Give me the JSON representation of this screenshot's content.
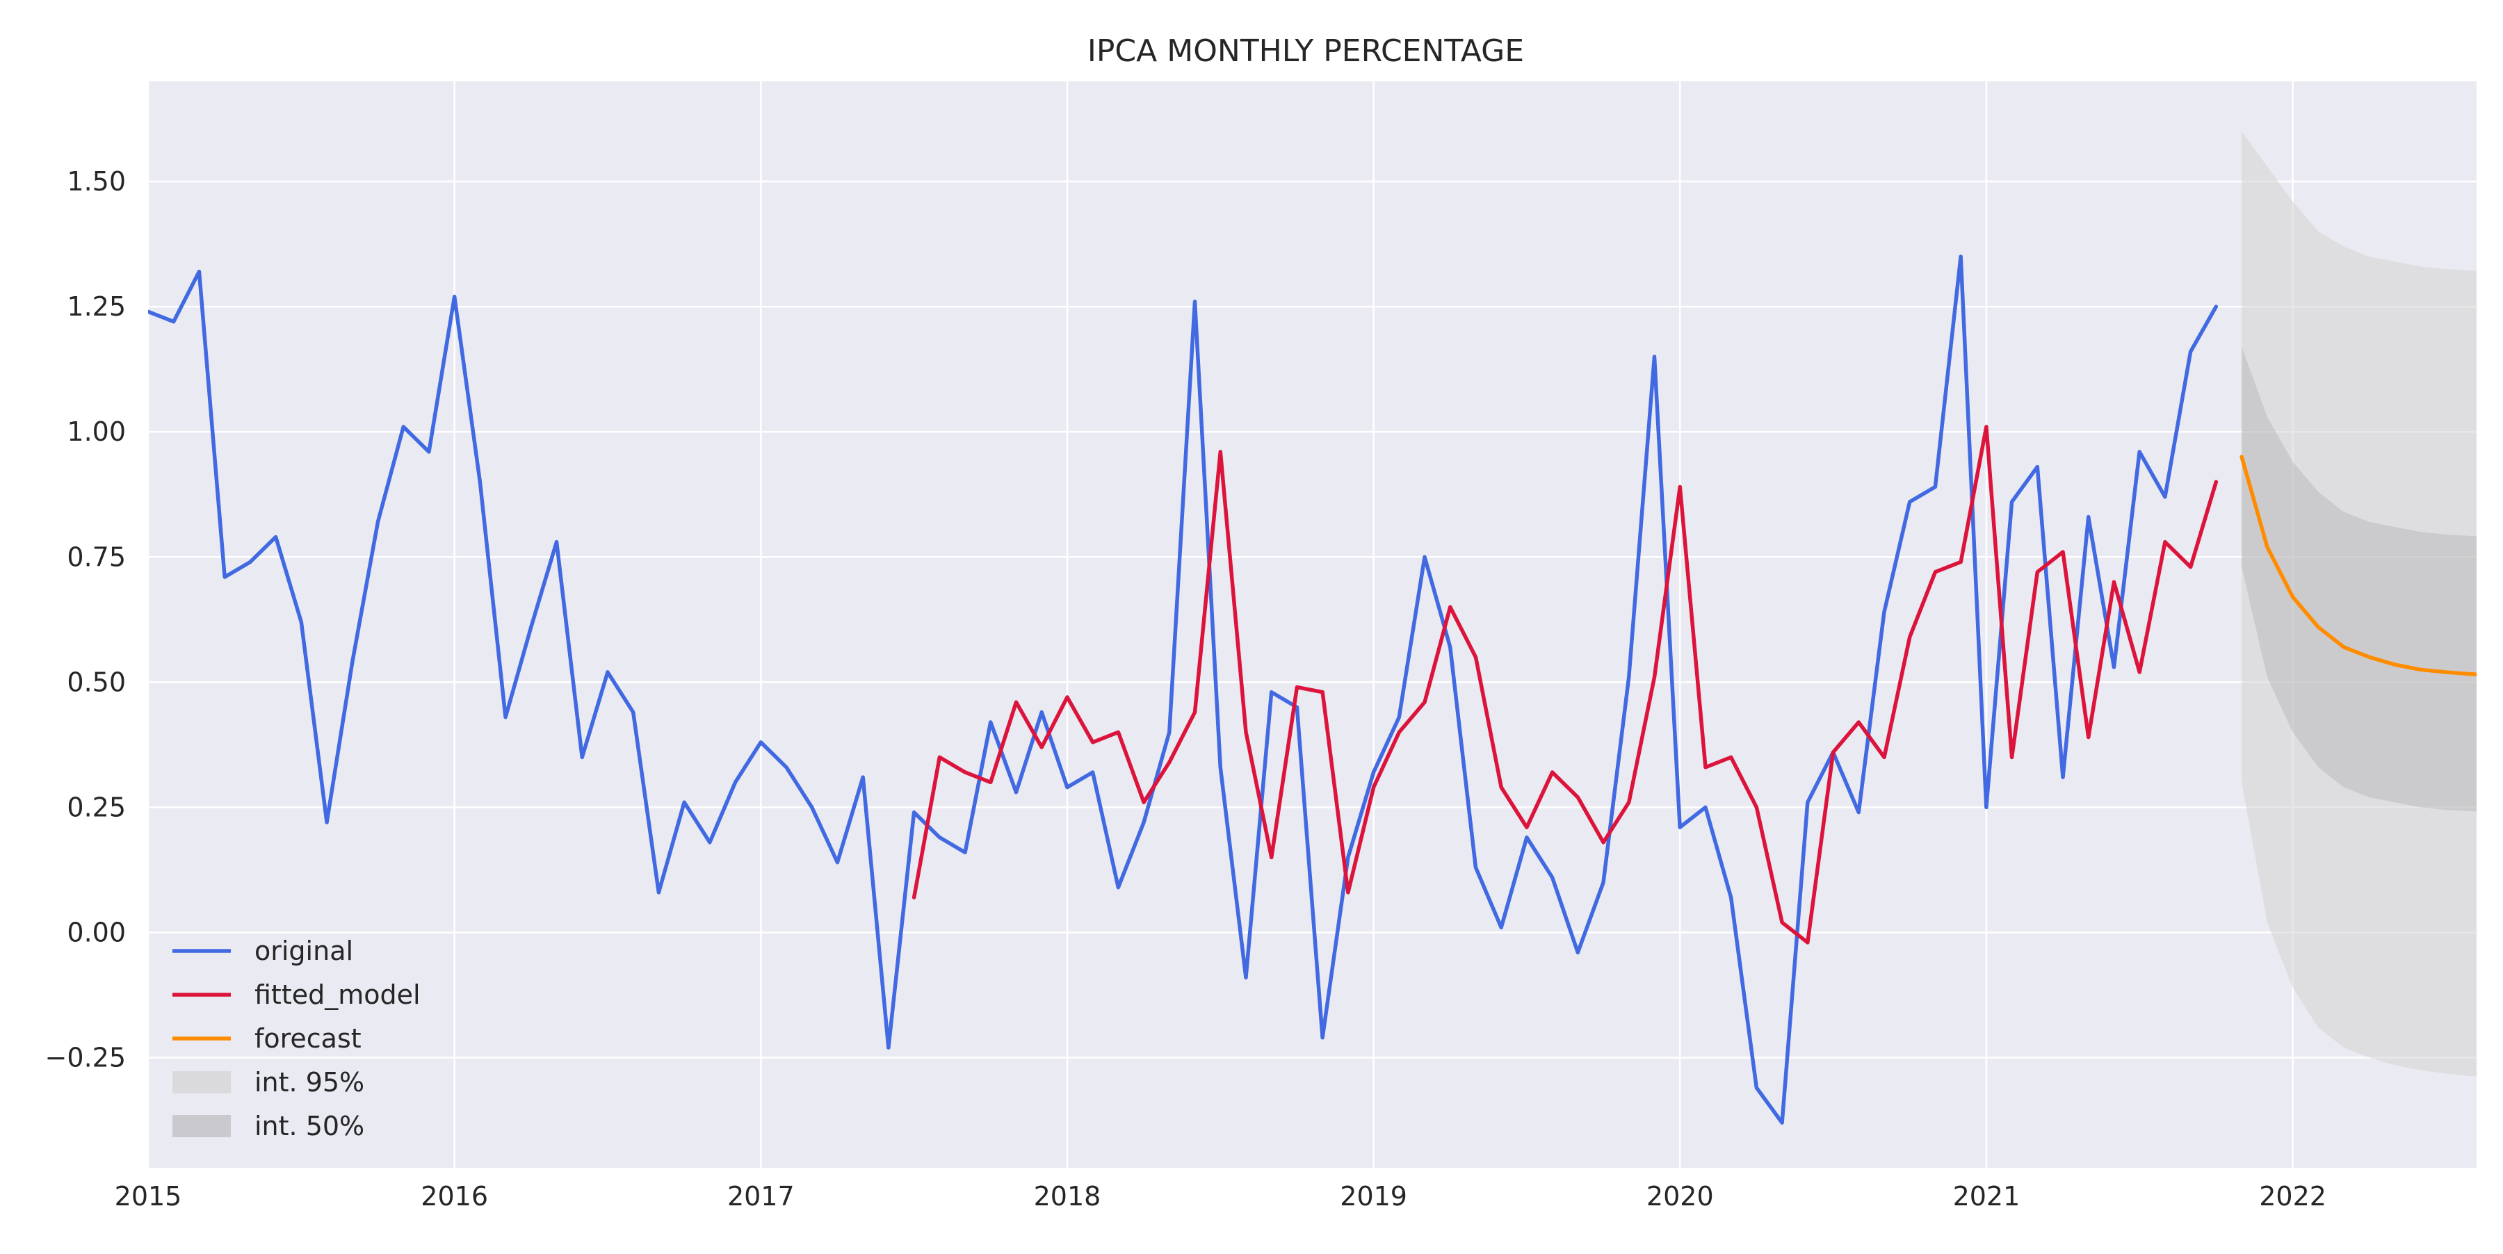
{
  "chart_data": {
    "type": "line",
    "title": "IPCA MONTHLY PERCENTAGE",
    "xlabel": "",
    "ylabel": "",
    "x_unit": "year",
    "xlim": [
      2015.0,
      2022.6
    ],
    "ylim": [
      -0.47,
      1.7
    ],
    "x_ticks": [
      2015,
      2016,
      2017,
      2018,
      2019,
      2020,
      2021,
      2022
    ],
    "y_ticks": [
      -0.25,
      0.0,
      0.25,
      0.5,
      0.75,
      1.0,
      1.25,
      1.5
    ],
    "y_tick_labels": [
      "−0.25",
      "0.00",
      "0.25",
      "0.50",
      "0.75",
      "1.00",
      "1.25",
      "1.50"
    ],
    "grid": true,
    "legend_position": "lower-left",
    "series": [
      {
        "name": "original",
        "color": "#4169e1",
        "start": 2015.0,
        "step": 0.08333,
        "values": [
          1.24,
          1.22,
          1.32,
          0.71,
          0.74,
          0.79,
          0.62,
          0.22,
          0.54,
          0.82,
          1.01,
          0.96,
          1.27,
          0.9,
          0.43,
          0.61,
          0.78,
          0.35,
          0.52,
          0.44,
          0.08,
          0.26,
          0.18,
          0.3,
          0.38,
          0.33,
          0.25,
          0.14,
          0.31,
          -0.23,
          0.24,
          0.19,
          0.16,
          0.42,
          0.28,
          0.44,
          0.29,
          0.32,
          0.09,
          0.22,
          0.4,
          1.26,
          0.33,
          -0.09,
          0.48,
          0.45,
          -0.21,
          0.15,
          0.32,
          0.43,
          0.75,
          0.57,
          0.13,
          0.01,
          0.19,
          0.11,
          -0.04,
          0.1,
          0.51,
          1.15,
          0.21,
          0.25,
          0.07,
          -0.31,
          -0.38,
          0.26,
          0.36,
          0.24,
          0.64,
          0.86,
          0.89,
          1.35,
          0.25,
          0.86,
          0.93,
          0.31,
          0.83,
          0.53,
          0.96,
          0.87,
          1.16,
          1.25
        ]
      },
      {
        "name": "fitted_model",
        "color": "#dc143c",
        "start": 2017.5,
        "step": 0.08333,
        "values": [
          0.07,
          0.35,
          0.32,
          0.3,
          0.46,
          0.37,
          0.47,
          0.38,
          0.4,
          0.26,
          0.34,
          0.44,
          0.96,
          0.4,
          0.15,
          0.49,
          0.48,
          0.08,
          0.29,
          0.4,
          0.46,
          0.65,
          0.55,
          0.29,
          0.21,
          0.32,
          0.27,
          0.18,
          0.26,
          0.51,
          0.89,
          0.33,
          0.35,
          0.25,
          0.02,
          -0.02,
          0.36,
          0.42,
          0.35,
          0.59,
          0.72,
          0.74,
          1.01,
          0.35,
          0.72,
          0.76,
          0.39,
          0.7,
          0.52,
          0.78,
          0.73,
          0.9
        ]
      },
      {
        "name": "forecast",
        "color": "#ff8c00",
        "start": 2021.8333,
        "step": 0.08333,
        "values": [
          0.95,
          0.77,
          0.67,
          0.61,
          0.57,
          0.55,
          0.535,
          0.525,
          0.52,
          0.516,
          0.514
        ]
      }
    ],
    "intervals": [
      {
        "name": "int. 95%",
        "level": 95,
        "color": "#d3d3d3",
        "opacity": 0.55,
        "start": 2021.8333,
        "step": 0.08333,
        "upper": [
          1.6,
          1.53,
          1.46,
          1.4,
          1.37,
          1.35,
          1.34,
          1.33,
          1.325,
          1.322,
          1.32
        ],
        "lower": [
          0.3,
          0.02,
          -0.11,
          -0.19,
          -0.23,
          -0.25,
          -0.265,
          -0.275,
          -0.282,
          -0.287,
          -0.29
        ]
      },
      {
        "name": "int. 50%",
        "level": 50,
        "color": "#a9a9a9",
        "opacity": 0.35,
        "start": 2021.8333,
        "step": 0.08333,
        "upper": [
          1.17,
          1.03,
          0.94,
          0.88,
          0.84,
          0.82,
          0.81,
          0.8,
          0.795,
          0.792,
          0.79
        ],
        "lower": [
          0.73,
          0.51,
          0.4,
          0.33,
          0.29,
          0.27,
          0.26,
          0.25,
          0.245,
          0.242,
          0.24
        ]
      }
    ],
    "colors": {
      "plot_background": "#eaeaf2",
      "grid": "#ffffff",
      "text": "#262626"
    }
  }
}
